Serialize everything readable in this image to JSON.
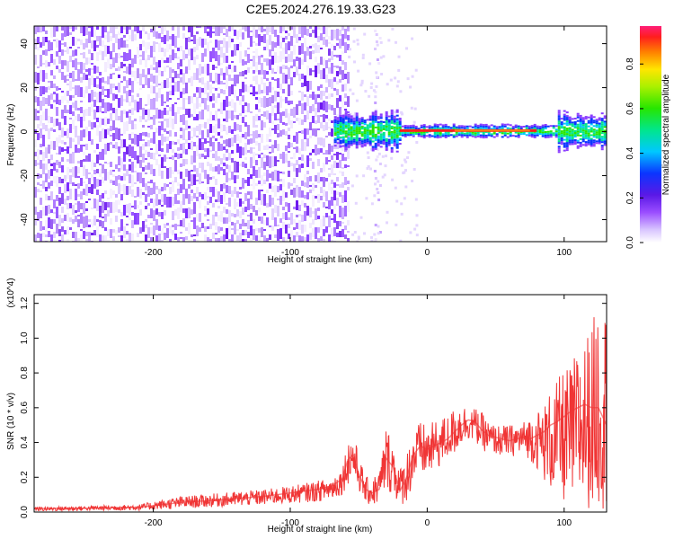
{
  "title": "C2E5.2024.276.19.33.G23",
  "chart_data": [
    {
      "type": "heatmap",
      "xlabel": "Height of straight line (km)",
      "ylabel": "Frequency (Hz)",
      "xlim": [
        -287,
        131
      ],
      "ylim": [
        -50,
        48
      ],
      "xticks": [
        "-200",
        "-100",
        "0",
        "100"
      ],
      "yticks": [
        "-40",
        "-20",
        "0",
        "20",
        "40"
      ],
      "colorbar": {
        "label": "Normalized spectral amplitude",
        "range": [
          0,
          0.97
        ],
        "ticks": [
          "0.0",
          "0.2",
          "0.4",
          "0.6",
          "0.8"
        ]
      },
      "features": {
        "noise_region_x": [
          -287,
          -58
        ],
        "signal_band_x": [
          -68,
          131
        ],
        "signal_band_center_hz": 0.5
      }
    },
    {
      "type": "line",
      "xlabel": "Height of straight line (km)",
      "ylabel": "SNR (10 * v/v)",
      "y_multiplier": "(x10^4)",
      "xlim": [
        -287,
        131
      ],
      "ylim": [
        0,
        1.25
      ],
      "xticks": [
        "-200",
        "-100",
        "0",
        "100"
      ],
      "yticks": [
        "0.0",
        "0.2",
        "0.4",
        "0.6",
        "0.8",
        "1.0",
        "1.2"
      ],
      "series": [
        {
          "color": "#f03535",
          "x": [
            -287,
            -250,
            -210,
            -180,
            -150,
            -120,
            -100,
            -80,
            -70,
            -62,
            -58,
            -54,
            -50,
            -45,
            -40,
            -35,
            -30,
            -25,
            -20,
            -15,
            -10,
            -5,
            0,
            5,
            10,
            15,
            20,
            25,
            30,
            35,
            40,
            45,
            50,
            55,
            60,
            65,
            70,
            75,
            80,
            85,
            90,
            95,
            100,
            105,
            110,
            115,
            120,
            125,
            131
          ],
          "y": [
            0.02,
            0.022,
            0.028,
            0.055,
            0.07,
            0.09,
            0.11,
            0.13,
            0.15,
            0.19,
            0.3,
            0.33,
            0.22,
            0.13,
            0.11,
            0.13,
            0.31,
            0.26,
            0.12,
            0.2,
            0.33,
            0.38,
            0.36,
            0.38,
            0.4,
            0.42,
            0.46,
            0.5,
            0.53,
            0.52,
            0.47,
            0.44,
            0.43,
            0.42,
            0.41,
            0.42,
            0.43,
            0.42,
            0.44,
            0.46,
            0.5,
            0.52,
            0.55,
            0.58,
            0.6,
            0.62,
            0.6,
            0.6,
            0.5
          ],
          "envelope_upper": [
            0.03,
            0.035,
            0.045,
            0.09,
            0.11,
            0.13,
            0.15,
            0.18,
            0.2,
            0.26,
            0.42,
            0.46,
            0.33,
            0.2,
            0.2,
            0.24,
            0.5,
            0.42,
            0.25,
            0.35,
            0.48,
            0.52,
            0.5,
            0.52,
            0.54,
            0.56,
            0.6,
            0.63,
            0.6,
            0.6,
            0.57,
            0.52,
            0.5,
            0.5,
            0.5,
            0.51,
            0.52,
            0.55,
            0.58,
            0.62,
            0.7,
            0.76,
            0.82,
            0.85,
            0.95,
            1.0,
            1.08,
            1.22,
            1.2
          ],
          "envelope_lower": [
            0.005,
            0.008,
            0.01,
            0.02,
            0.03,
            0.04,
            0.05,
            0.06,
            0.07,
            0.1,
            0.16,
            0.18,
            0.12,
            0.05,
            0.03,
            0.05,
            0.12,
            0.1,
            0.03,
            0.06,
            0.15,
            0.2,
            0.2,
            0.23,
            0.26,
            0.3,
            0.33,
            0.38,
            0.42,
            0.4,
            0.36,
            0.33,
            0.33,
            0.32,
            0.32,
            0.32,
            0.33,
            0.3,
            0.25,
            0.18,
            0.12,
            0.08,
            0.05,
            0.03,
            0.02,
            0.02,
            0.02,
            0.02,
            0.02
          ]
        }
      ]
    }
  ]
}
